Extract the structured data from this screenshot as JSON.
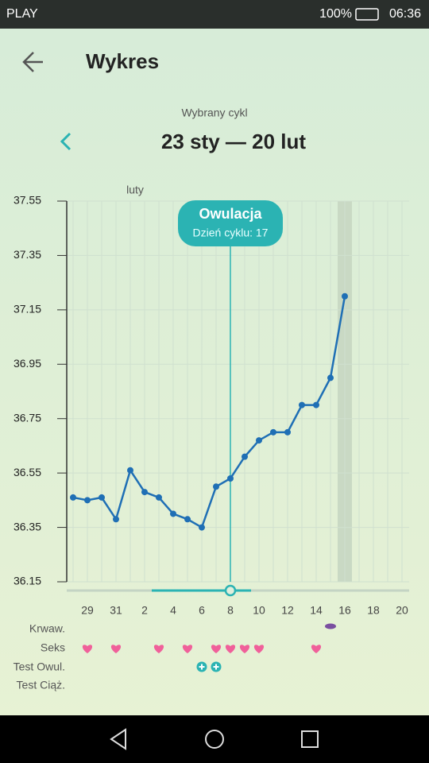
{
  "status_bar": {
    "carrier": "PLAY",
    "battery": "100%",
    "time": "06:36"
  },
  "header": {
    "title": "Wykres"
  },
  "cycle": {
    "caption": "Wybrany cykl",
    "range": "23 sty — 20 lut"
  },
  "chart_data": {
    "type": "line",
    "month_label": "luty",
    "categories": [
      null,
      "29",
      null,
      "31",
      null,
      "2",
      null,
      "4",
      null,
      "6",
      null,
      "8",
      null,
      "10",
      null,
      "12",
      null,
      "14",
      null,
      "16",
      null,
      "18",
      null,
      "20"
    ],
    "values": [
      36.46,
      36.45,
      36.46,
      36.38,
      36.56,
      36.48,
      36.46,
      36.4,
      36.38,
      36.35,
      36.5,
      36.53,
      36.61,
      36.67,
      36.7,
      36.7,
      36.8,
      36.8,
      36.9,
      37.2,
      null,
      null,
      null,
      null
    ],
    "color": "#1f6fb5",
    "ylim": [
      36.15,
      37.55
    ],
    "yticks": [
      36.15,
      36.35,
      36.55,
      36.75,
      36.95,
      37.15,
      37.35,
      37.55
    ],
    "grid": true,
    "annotation": {
      "title": "Owulacja",
      "text": "Dzień cyklu: 17"
    },
    "rows": [
      "Krwaw.",
      "Seks",
      "Test Owul.",
      "Test Ciąż."
    ]
  }
}
